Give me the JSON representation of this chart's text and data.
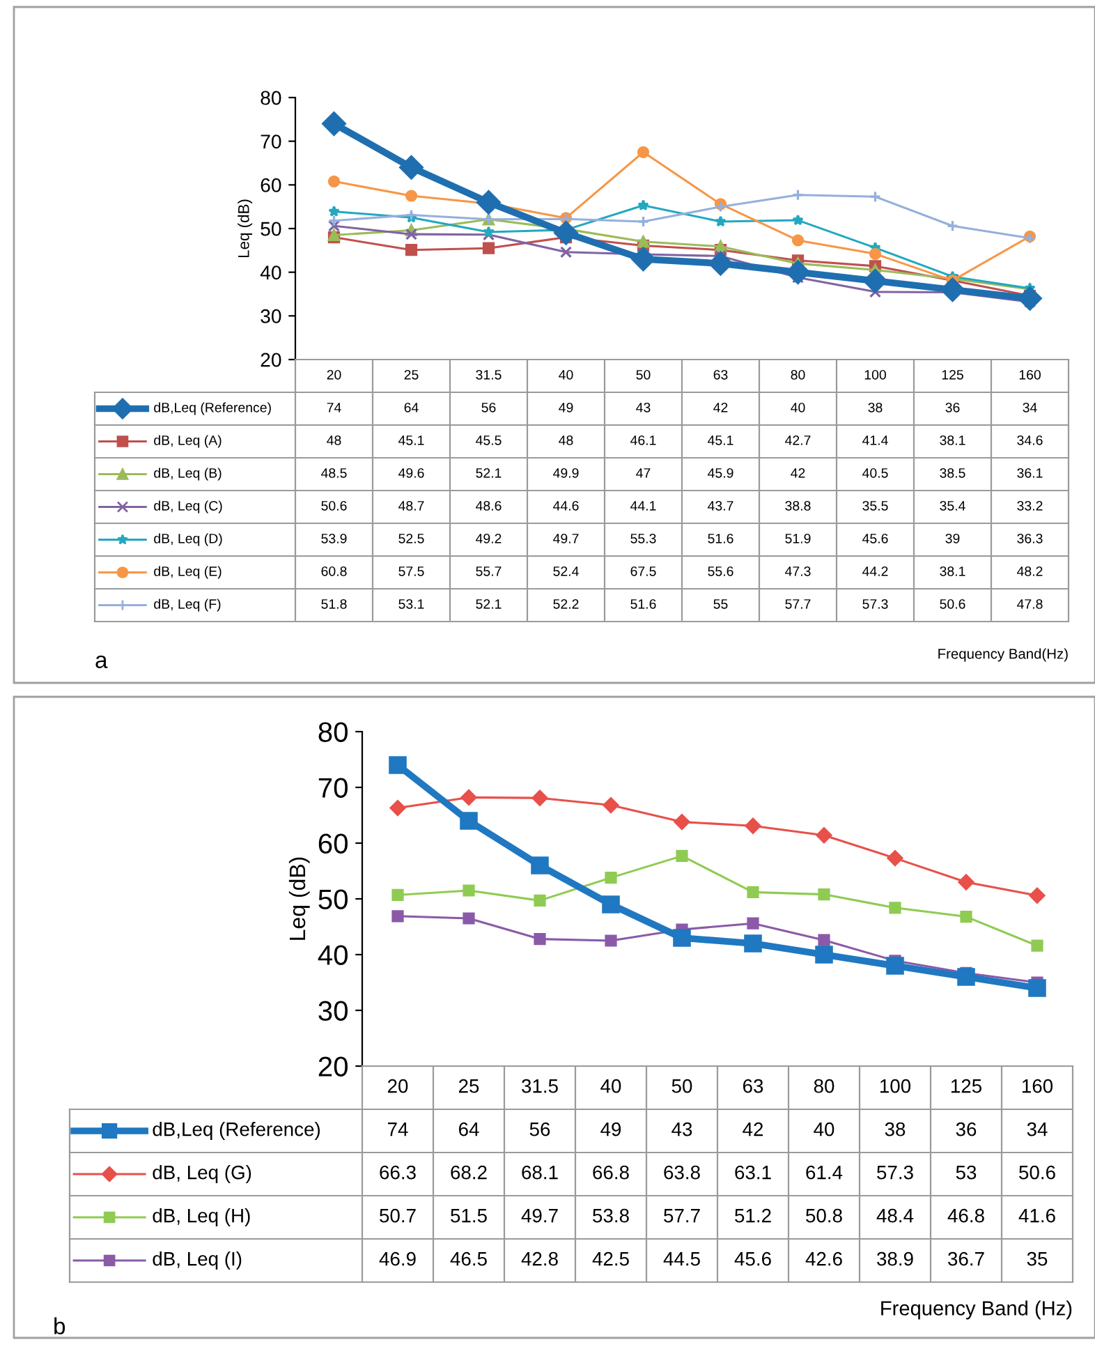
{
  "chart_data": [
    {
      "type": "line",
      "ylabel": "Leq (dB)",
      "xlabel": "Frequency Band(Hz)",
      "annotations": [
        "a"
      ],
      "categories": [
        "20",
        "25",
        "31.5",
        "40",
        "50",
        "63",
        "80",
        "100",
        "125",
        "160"
      ],
      "ylim": [
        20,
        80
      ],
      "yticks": [
        20,
        30,
        40,
        50,
        60,
        70,
        80
      ],
      "grid": false,
      "legend": "left",
      "data_labels": true,
      "series": [
        {
          "name": "dB,Leq (Reference)",
          "color": "#1f6fb0",
          "marker": "diamond",
          "values": [
            74,
            64,
            56,
            49,
            43,
            42,
            40,
            38,
            36,
            34
          ]
        },
        {
          "name": "dB, Leq (A)",
          "color": "#c0504d",
          "marker": "square",
          "values": [
            48,
            45.1,
            45.5,
            48,
            46.1,
            45.1,
            42.7,
            41.4,
            38.1,
            34.6
          ]
        },
        {
          "name": "dB, Leq (B)",
          "color": "#9bbb59",
          "marker": "triangle",
          "values": [
            48.5,
            49.6,
            52.1,
            49.9,
            47,
            45.9,
            42,
            40.5,
            38.5,
            36.1
          ]
        },
        {
          "name": "dB, Leq (C)",
          "color": "#8064a2",
          "marker": "cross",
          "values": [
            50.6,
            48.7,
            48.6,
            44.6,
            44.1,
            43.7,
            38.8,
            35.5,
            35.4,
            33.2
          ]
        },
        {
          "name": "dB, Leq (D)",
          "color": "#23a8c0",
          "marker": "star",
          "values": [
            53.9,
            52.5,
            49.2,
            49.7,
            55.3,
            51.6,
            51.9,
            45.6,
            39,
            36.3
          ]
        },
        {
          "name": "dB, Leq (E)",
          "color": "#f79646",
          "marker": "circle",
          "values": [
            60.8,
            57.5,
            55.7,
            52.4,
            67.5,
            55.6,
            47.3,
            44.2,
            38.1,
            48.2
          ]
        },
        {
          "name": "dB, Leq (F)",
          "color": "#94b0dc",
          "marker": "plus",
          "values": [
            51.8,
            53.1,
            52.1,
            52.2,
            51.6,
            55,
            57.7,
            57.3,
            50.6,
            47.8
          ]
        }
      ]
    },
    {
      "type": "line",
      "ylabel": "Leq (dB)",
      "xlabel": "Frequency Band (Hz)",
      "annotations": [
        "b"
      ],
      "categories": [
        "20",
        "25",
        "31.5",
        "40",
        "50",
        "63",
        "80",
        "100",
        "125",
        "160"
      ],
      "ylim": [
        20,
        80
      ],
      "yticks": [
        20,
        30,
        40,
        50,
        60,
        70,
        80
      ],
      "grid": false,
      "legend": "left",
      "data_labels": true,
      "series": [
        {
          "name": "dB,Leq (Reference)",
          "color": "#1f78c1",
          "marker": "square",
          "values": [
            74,
            64,
            56,
            49,
            43,
            42,
            40,
            38,
            36,
            34
          ]
        },
        {
          "name": "dB, Leq (G)",
          "color": "#e8504a",
          "marker": "diamond",
          "values": [
            66.3,
            68.2,
            68.1,
            66.8,
            63.8,
            63.1,
            61.4,
            57.3,
            53,
            50.6
          ]
        },
        {
          "name": "dB, Leq (H)",
          "color": "#8fcb52",
          "marker": "square",
          "values": [
            50.7,
            51.5,
            49.7,
            53.8,
            57.7,
            51.2,
            50.8,
            48.4,
            46.8,
            41.6
          ]
        },
        {
          "name": "dB, Leq (I)",
          "color": "#8a5aa8",
          "marker": "square",
          "values": [
            46.9,
            46.5,
            42.8,
            42.5,
            44.5,
            45.6,
            42.6,
            38.9,
            36.7,
            35
          ]
        }
      ]
    }
  ]
}
